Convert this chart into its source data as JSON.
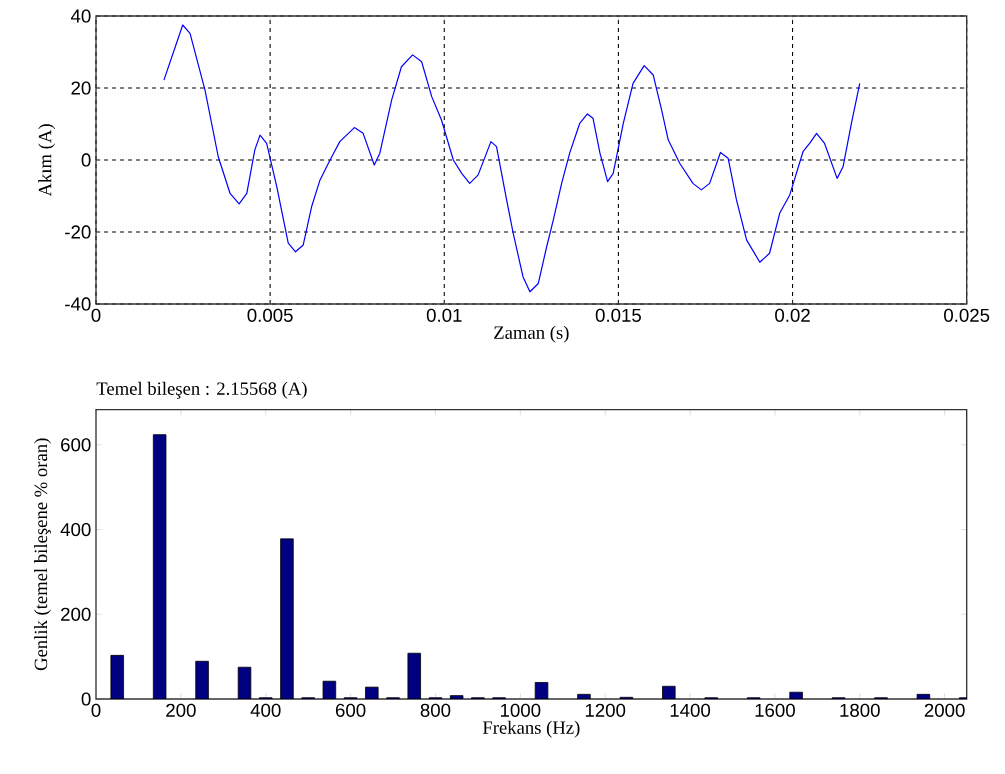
{
  "chart_data": [
    {
      "type": "line",
      "xlabel": "Zaman (s)",
      "ylabel": "Akım (A)",
      "xlim": [
        0,
        0.025
      ],
      "ylim": [
        -40,
        40
      ],
      "xticks": [
        0,
        0.005,
        0.01,
        0.015,
        0.02,
        0.025
      ],
      "yticks": [
        -40,
        -20,
        0,
        20,
        40
      ],
      "grid": true,
      "series": [
        {
          "color": "#0000ff",
          "x": [
            0.00195,
            0.00249,
            0.0027,
            0.00313,
            0.00351,
            0.00385,
            0.00411,
            0.00433,
            0.00456,
            0.00471,
            0.0049,
            0.00519,
            0.00552,
            0.00573,
            0.00595,
            0.00619,
            0.00643,
            0.00672,
            0.007,
            0.00742,
            0.00767,
            0.00799,
            0.00815,
            0.00849,
            0.00877,
            0.00909,
            0.00935,
            0.00964,
            0.00992,
            0.01026,
            0.0105,
            0.01073,
            0.01097,
            0.01134,
            0.0115,
            0.01179,
            0.01198,
            0.01226,
            0.01246,
            0.0127,
            0.01294,
            0.01313,
            0.01337,
            0.0136,
            0.01389,
            0.01411,
            0.01427,
            0.01447,
            0.01469,
            0.01485,
            0.01514,
            0.01542,
            0.01574,
            0.016,
            0.01624,
            0.01643,
            0.01676,
            0.01714,
            0.01738,
            0.01762,
            0.01793,
            0.01815,
            0.01839,
            0.01868,
            0.01906,
            0.01934,
            0.01963,
            0.01992,
            0.0203,
            0.02049,
            0.02069,
            0.02092,
            0.02128,
            0.02145,
            0.02169,
            0.02193
          ],
          "values": [
            22.2,
            37.5,
            35.2,
            19.4,
            0.9,
            -9.3,
            -12.2,
            -9.3,
            2.8,
            6.9,
            4.6,
            -7.4,
            -23.1,
            -25.5,
            -23.6,
            -13,
            -5.6,
            0,
            5.1,
            9,
            7.4,
            -1.4,
            1.9,
            16.7,
            25.9,
            29.2,
            27.3,
            17.6,
            11.1,
            0,
            -3.7,
            -6.5,
            -4.2,
            5.1,
            3.7,
            -11.1,
            -20.4,
            -32.4,
            -36.6,
            -34.3,
            -24.1,
            -16.7,
            -6.5,
            1.9,
            10.2,
            12.8,
            11.6,
            1.9,
            -6,
            -3.7,
            10.2,
            21.3,
            26.2,
            23.6,
            13.9,
            5.6,
            -0.9,
            -6.5,
            -8.3,
            -6.5,
            2.1,
            0.5,
            -11.1,
            -22.2,
            -28.4,
            -25.9,
            -14.8,
            -9.7,
            2.3,
            4.6,
            7.4,
            4.6,
            -5.1,
            -1.9,
            10.2,
            21.3
          ]
        }
      ]
    },
    {
      "type": "bar",
      "title": "Temel bileşen : 2.15568  (A)",
      "xlabel": "Frekans (Hz)",
      "ylabel": "Genlik (temel bileşene % oran)",
      "xlim": [
        0,
        2052
      ],
      "ylim": [
        0,
        683
      ],
      "xticks": [
        0,
        200,
        400,
        600,
        800,
        1000,
        1200,
        1400,
        1600,
        1800,
        2000
      ],
      "yticks": [
        0,
        200,
        400,
        600
      ],
      "series": [
        {
          "color": "#000080",
          "x": [
            50,
            150,
            250,
            350,
            400,
            450,
            500,
            550,
            600,
            650,
            700,
            750,
            800,
            850,
            900,
            950,
            1050,
            1150,
            1250,
            1350,
            1450,
            1550,
            1650,
            1750,
            1850,
            1950,
            2050
          ],
          "values": [
            103,
            624,
            89,
            75,
            3,
            378,
            3,
            42,
            3,
            28,
            3,
            108,
            3,
            8,
            3,
            3,
            39,
            11,
            4,
            30,
            3,
            3,
            16,
            3,
            3,
            11,
            3
          ]
        }
      ]
    }
  ]
}
